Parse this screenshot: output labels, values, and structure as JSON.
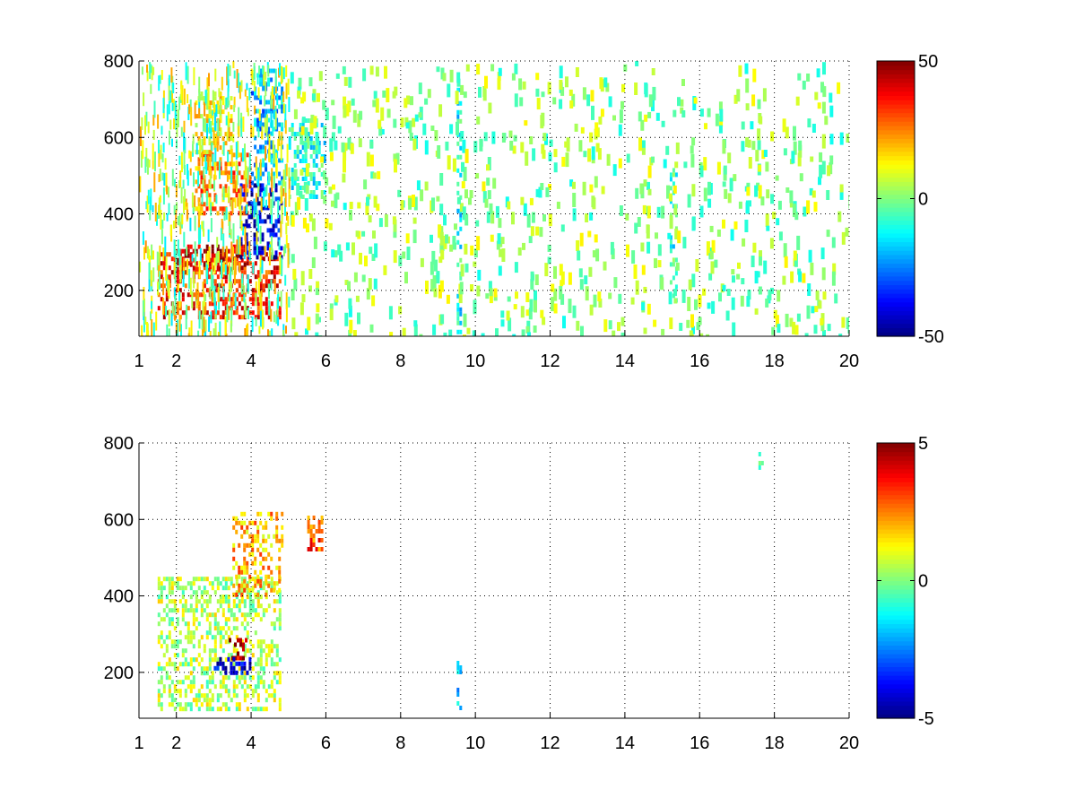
{
  "chart_data": [
    {
      "type": "heatmap",
      "title": "",
      "xlabel": "",
      "ylabel": "",
      "xlim": [
        1,
        20
      ],
      "ylim": [
        80,
        800
      ],
      "x_ticks": [
        1,
        2,
        4,
        6,
        8,
        10,
        12,
        14,
        16,
        18,
        20
      ],
      "x_tick_labels": [
        "1",
        "2",
        "4",
        "6",
        "8",
        "10",
        "12",
        "14",
        "16",
        "18",
        "20"
      ],
      "y_ticks": [
        200,
        400,
        600,
        800
      ],
      "y_tick_labels": [
        "200",
        "400",
        "600",
        "800"
      ],
      "grid": true,
      "colormap": "jet",
      "colorbar": {
        "min": -50,
        "max": 50,
        "ticks": [
          -50,
          0,
          50
        ],
        "tick_labels": [
          "-50",
          "0",
          "50"
        ]
      },
      "features": [
        {
          "x_range": [
            1.5,
            4.8
          ],
          "y_range": [
            130,
            300
          ],
          "value": 35
        },
        {
          "x_range": [
            2.0,
            3.8
          ],
          "y_range": [
            250,
            320
          ],
          "value": 45
        },
        {
          "x_range": [
            2.5,
            4.0
          ],
          "y_range": [
            400,
            560
          ],
          "value": 25
        },
        {
          "x_range": [
            2.5,
            3.5
          ],
          "y_range": [
            560,
            720
          ],
          "value": 15
        },
        {
          "x_range": [
            3.7,
            4.8
          ],
          "y_range": [
            290,
            480
          ],
          "value": -40
        },
        {
          "x_range": [
            4.0,
            4.8
          ],
          "y_range": [
            480,
            780
          ],
          "value": -20
        },
        {
          "x_range": [
            5.0,
            6.0
          ],
          "y_range": [
            450,
            650
          ],
          "value": -10
        },
        {
          "x_range": [
            9.5,
            9.6
          ],
          "y_range": [
            90,
            730
          ],
          "value": -12
        },
        {
          "x_range": [
            15.2,
            15.35
          ],
          "y_range": [
            170,
            520
          ],
          "value": -8
        }
      ]
    },
    {
      "type": "heatmap",
      "title": "",
      "xlabel": "",
      "ylabel": "",
      "xlim": [
        1,
        20
      ],
      "ylim": [
        80,
        800
      ],
      "x_ticks": [
        1,
        2,
        4,
        6,
        8,
        10,
        12,
        14,
        16,
        18,
        20
      ],
      "x_tick_labels": [
        "1",
        "2",
        "4",
        "6",
        "8",
        "10",
        "12",
        "14",
        "16",
        "18",
        "20"
      ],
      "y_ticks": [
        200,
        400,
        600,
        800
      ],
      "y_tick_labels": [
        "200",
        "400",
        "600",
        "800"
      ],
      "grid": true,
      "colormap": "jet",
      "colorbar": {
        "min": -5,
        "max": 5,
        "ticks": [
          -5,
          0,
          5
        ],
        "tick_labels": [
          "-5",
          "0",
          "5"
        ]
      },
      "features": [
        {
          "x_range": [
            1.5,
            4.8
          ],
          "y_range": [
            100,
            450
          ],
          "value": 0.5
        },
        {
          "x_range": [
            3.4,
            3.9
          ],
          "y_range": [
            240,
            290
          ],
          "value": 4.5
        },
        {
          "x_range": [
            3.0,
            4.0
          ],
          "y_range": [
            200,
            240
          ],
          "value": -4
        },
        {
          "x_range": [
            3.5,
            4.8
          ],
          "y_range": [
            400,
            620
          ],
          "value": 2
        },
        {
          "x_range": [
            5.5,
            5.9
          ],
          "y_range": [
            520,
            610
          ],
          "value": 3
        },
        {
          "x_range": [
            9.5,
            9.6
          ],
          "y_range": [
            100,
            230
          ],
          "value": -1.5
        },
        {
          "x_range": [
            17.5,
            17.7
          ],
          "y_range": [
            730,
            800
          ],
          "value": -0.5
        }
      ]
    }
  ]
}
